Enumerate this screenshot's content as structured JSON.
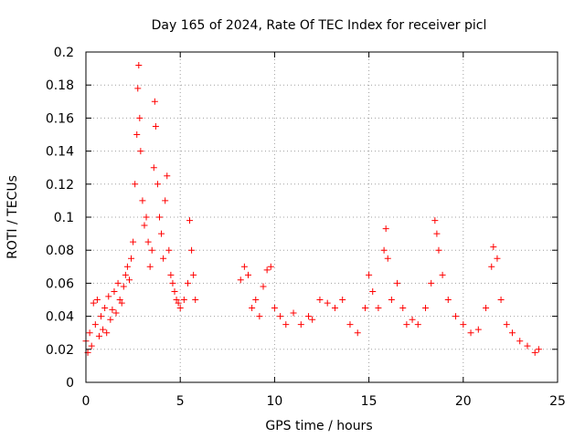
{
  "chart_data": {
    "type": "scatter",
    "title": "Day 165 of 2024, Rate Of TEC Index for receiver picl",
    "xlabel": "GPS time / hours",
    "ylabel": "ROTI / TECUs",
    "xlim": [
      0,
      25
    ],
    "ylim": [
      0,
      0.2
    ],
    "xticks": [
      0,
      5,
      10,
      15,
      20,
      25
    ],
    "xtick_labels": [
      "0",
      "5",
      "10",
      "15",
      "20",
      "25"
    ],
    "yticks": [
      0,
      0.02,
      0.04,
      0.06,
      0.08,
      0.1,
      0.12,
      0.14,
      0.16,
      0.18,
      0.2
    ],
    "ytick_labels": [
      "0",
      "0.02",
      "0.04",
      "0.06",
      "0.08",
      "0.1",
      "0.12",
      "0.14",
      "0.16",
      "0.18",
      "0.2"
    ],
    "grid": true,
    "marker": "+",
    "color": "#ff0000",
    "series": [
      {
        "points": [
          [
            0.0,
            0.025
          ],
          [
            0.1,
            0.018
          ],
          [
            0.2,
            0.03
          ],
          [
            0.3,
            0.022
          ],
          [
            0.4,
            0.048
          ],
          [
            0.5,
            0.035
          ],
          [
            0.6,
            0.05
          ],
          [
            0.7,
            0.028
          ],
          [
            0.8,
            0.04
          ],
          [
            0.9,
            0.032
          ],
          [
            1.0,
            0.045
          ],
          [
            1.1,
            0.03
          ],
          [
            1.2,
            0.052
          ],
          [
            1.3,
            0.038
          ],
          [
            1.4,
            0.044
          ],
          [
            1.5,
            0.055
          ],
          [
            1.6,
            0.042
          ],
          [
            1.7,
            0.06
          ],
          [
            1.8,
            0.05
          ],
          [
            1.9,
            0.048
          ],
          [
            2.0,
            0.058
          ],
          [
            2.1,
            0.065
          ],
          [
            2.2,
            0.07
          ],
          [
            2.3,
            0.062
          ],
          [
            2.4,
            0.075
          ],
          [
            2.5,
            0.085
          ],
          [
            2.6,
            0.12
          ],
          [
            2.7,
            0.15
          ],
          [
            2.75,
            0.178
          ],
          [
            2.8,
            0.192
          ],
          [
            2.85,
            0.16
          ],
          [
            2.9,
            0.14
          ],
          [
            3.0,
            0.11
          ],
          [
            3.1,
            0.095
          ],
          [
            3.2,
            0.1
          ],
          [
            3.3,
            0.085
          ],
          [
            3.4,
            0.07
          ],
          [
            3.5,
            0.08
          ],
          [
            3.6,
            0.13
          ],
          [
            3.65,
            0.17
          ],
          [
            3.7,
            0.155
          ],
          [
            3.8,
            0.12
          ],
          [
            3.9,
            0.1
          ],
          [
            4.0,
            0.09
          ],
          [
            4.1,
            0.075
          ],
          [
            4.2,
            0.11
          ],
          [
            4.3,
            0.125
          ],
          [
            4.4,
            0.08
          ],
          [
            4.5,
            0.065
          ],
          [
            4.6,
            0.06
          ],
          [
            4.7,
            0.055
          ],
          [
            4.8,
            0.05
          ],
          [
            4.9,
            0.048
          ],
          [
            5.0,
            0.045
          ],
          [
            5.2,
            0.05
          ],
          [
            5.4,
            0.06
          ],
          [
            5.5,
            0.098
          ],
          [
            5.6,
            0.08
          ],
          [
            5.7,
            0.065
          ],
          [
            5.8,
            0.05
          ],
          [
            8.2,
            0.062
          ],
          [
            8.4,
            0.07
          ],
          [
            8.6,
            0.065
          ],
          [
            8.8,
            0.045
          ],
          [
            9.0,
            0.05
          ],
          [
            9.2,
            0.04
          ],
          [
            9.4,
            0.058
          ],
          [
            9.6,
            0.068
          ],
          [
            9.8,
            0.07
          ],
          [
            10.0,
            0.045
          ],
          [
            10.3,
            0.04
          ],
          [
            10.6,
            0.035
          ],
          [
            11.0,
            0.042
          ],
          [
            11.4,
            0.035
          ],
          [
            11.8,
            0.04
          ],
          [
            12.0,
            0.038
          ],
          [
            12.4,
            0.05
          ],
          [
            12.8,
            0.048
          ],
          [
            13.2,
            0.045
          ],
          [
            13.6,
            0.05
          ],
          [
            14.0,
            0.035
          ],
          [
            14.4,
            0.03
          ],
          [
            14.8,
            0.045
          ],
          [
            15.0,
            0.065
          ],
          [
            15.2,
            0.055
          ],
          [
            15.5,
            0.045
          ],
          [
            15.8,
            0.08
          ],
          [
            15.9,
            0.093
          ],
          [
            16.0,
            0.075
          ],
          [
            16.2,
            0.05
          ],
          [
            16.5,
            0.06
          ],
          [
            16.8,
            0.045
          ],
          [
            17.0,
            0.035
          ],
          [
            17.3,
            0.038
          ],
          [
            17.6,
            0.035
          ],
          [
            18.0,
            0.045
          ],
          [
            18.3,
            0.06
          ],
          [
            18.5,
            0.098
          ],
          [
            18.6,
            0.09
          ],
          [
            18.7,
            0.08
          ],
          [
            18.9,
            0.065
          ],
          [
            19.2,
            0.05
          ],
          [
            19.6,
            0.04
          ],
          [
            20.0,
            0.035
          ],
          [
            20.4,
            0.03
          ],
          [
            20.8,
            0.032
          ],
          [
            21.2,
            0.045
          ],
          [
            21.5,
            0.07
          ],
          [
            21.6,
            0.082
          ],
          [
            21.8,
            0.075
          ],
          [
            22.0,
            0.05
          ],
          [
            22.3,
            0.035
          ],
          [
            22.6,
            0.03
          ],
          [
            23.0,
            0.025
          ],
          [
            23.4,
            0.022
          ],
          [
            23.8,
            0.018
          ],
          [
            24.0,
            0.02
          ]
        ]
      }
    ]
  }
}
